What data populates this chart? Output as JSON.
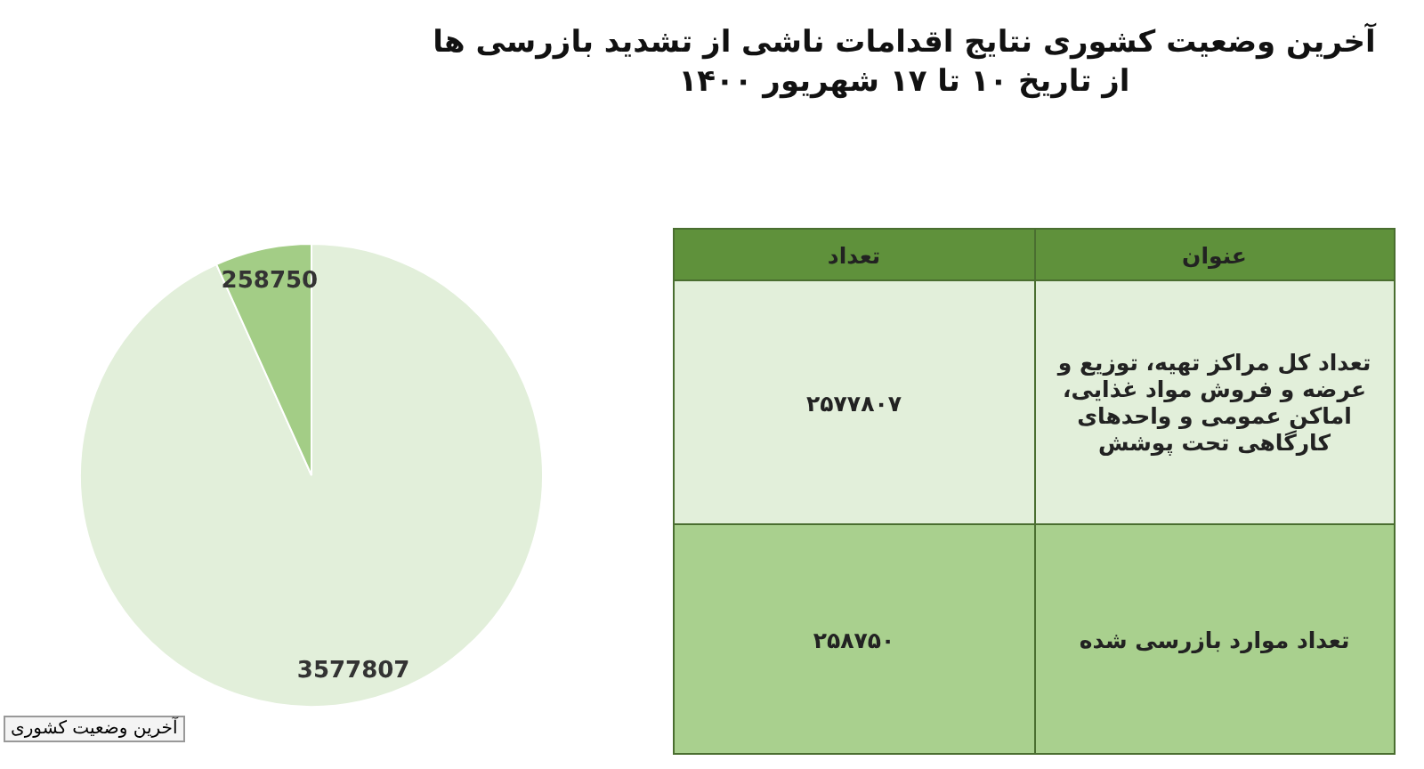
{
  "chart_data": {
    "type": "pie",
    "title": "آخرین وضعیت کشوری نتایج اقدامات ناشی از تشدید بازرسی ها",
    "subtitle": "از تاریخ ۱۰ تا ۱۷ شهریور ۱۴۰۰",
    "categories": [
      null,
      null
    ],
    "values": [
      3577807,
      258750
    ],
    "colors": [
      "#e2efda",
      "#a3cd86"
    ],
    "data_labels": true,
    "legend": false,
    "annotations": [
      "عنوان",
      "تعداد",
      "تعداد کل مراکز تهیه، توزیع و عرضه و فروش مواد غذایی، اماکن عمومی و واحدهای کارگاهی تحت پوشش",
      "۲۵۷۷۸۰۷",
      "تعداد موارد بازرسی شده",
      "۲۵۸۷۵۰",
      "آخرین وضعیت کشوری"
    ]
  }
}
